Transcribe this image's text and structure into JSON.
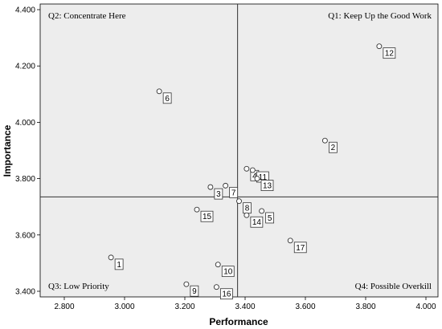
{
  "chart_data": {
    "type": "scatter",
    "title": "",
    "xlabel": "Performance",
    "ylabel": "Importance",
    "xlim": [
      2.72,
      4.04
    ],
    "ylim": [
      3.38,
      4.42
    ],
    "xticks": [
      "2.800",
      "3.000",
      "3.200",
      "3.400",
      "3.600",
      "3.800",
      "4.000"
    ],
    "yticks": [
      "3.400",
      "3.600",
      "3.800",
      "4.000",
      "4.200",
      "4.400"
    ],
    "reference_lines": {
      "x": 3.375,
      "y": 3.735
    },
    "quadrants": {
      "q1": "Q1: Keep Up the Good Work",
      "q2": "Q2: Concentrate Here",
      "q3": "Q3: Low Priority",
      "q4": "Q4: Possible Overkill"
    },
    "points": [
      {
        "label": "1",
        "x": 2.955,
        "y": 3.52
      },
      {
        "label": "2",
        "x": 3.665,
        "y": 3.935
      },
      {
        "label": "3",
        "x": 3.285,
        "y": 3.77
      },
      {
        "label": "4",
        "x": 3.405,
        "y": 3.835
      },
      {
        "label": "5",
        "x": 3.455,
        "y": 3.685
      },
      {
        "label": "6",
        "x": 3.115,
        "y": 4.11
      },
      {
        "label": "7",
        "x": 3.335,
        "y": 3.775
      },
      {
        "label": "8",
        "x": 3.38,
        "y": 3.72
      },
      {
        "label": "9",
        "x": 3.205,
        "y": 3.425
      },
      {
        "label": "10",
        "x": 3.31,
        "y": 3.495
      },
      {
        "label": "11",
        "x": 3.425,
        "y": 3.83
      },
      {
        "label": "12",
        "x": 3.845,
        "y": 4.27
      },
      {
        "label": "13",
        "x": 3.44,
        "y": 3.8
      },
      {
        "label": "14",
        "x": 3.405,
        "y": 3.67
      },
      {
        "label": "15",
        "x": 3.24,
        "y": 3.69
      },
      {
        "label": "16",
        "x": 3.305,
        "y": 3.415
      },
      {
        "label": "17",
        "x": 3.55,
        "y": 3.58
      }
    ]
  }
}
